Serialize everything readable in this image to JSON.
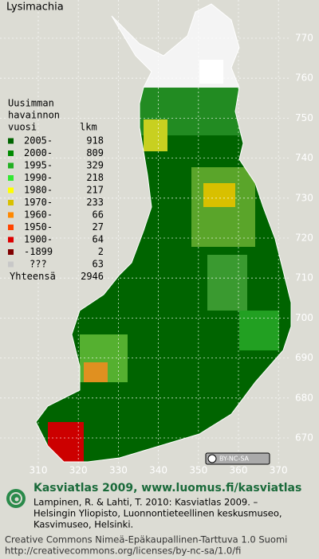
{
  "title": "Lysimachia",
  "legend": {
    "heading": [
      "Uusimman",
      "havainnon",
      "vuosi"
    ],
    "count_heading": "lkm",
    "rows": [
      {
        "label": "2005-",
        "count": 918,
        "color": "#006400"
      },
      {
        "label": "2000-",
        "count": 809,
        "color": "#008a00"
      },
      {
        "label": "1995-",
        "count": 329,
        "color": "#22b022"
      },
      {
        "label": "1990-",
        "count": 218,
        "color": "#33e833"
      },
      {
        "label": "1980-",
        "count": 217,
        "color": "#ffff00"
      },
      {
        "label": "1970-",
        "count": 233,
        "color": "#d8c000"
      },
      {
        "label": "1960-",
        "count": 66,
        "color": "#ff8800"
      },
      {
        "label": "1950-",
        "count": 27,
        "color": "#ff4400"
      },
      {
        "label": "1900-",
        "count": 64,
        "color": "#dd0000"
      },
      {
        "label": "-1899",
        "count": 2,
        "color": "#800000"
      },
      {
        "label": "???",
        "count": 63,
        "color": "#c8c8c8"
      }
    ],
    "total_label": "Yhteensä",
    "total": 2946
  },
  "grid": {
    "xticks": [
      310,
      320,
      330,
      340,
      350,
      360,
      370
    ],
    "yticks": [
      770,
      760,
      750,
      740,
      730,
      720,
      710,
      700,
      690,
      680,
      670
    ]
  },
  "license_badge": "BY-NC-SA",
  "footer": {
    "heading": "Kasviatlas 2009, www.luomus.fi/kasviatlas",
    "citation": [
      "Lampinen, R. & Lahti, T. 2010: Kasviatlas 2009. –",
      "Helsingin Yliopisto, Luonnontieteellinen keskusmuseo,",
      "Kasvimuseo, Helsinki."
    ],
    "license": [
      "Creative Commons Nimeä-Epäkaupallinen-Tarttuva 1.0 Suomi",
      "http://creativecommons.org/licenses/by-nc-sa/1.0/fi"
    ]
  }
}
